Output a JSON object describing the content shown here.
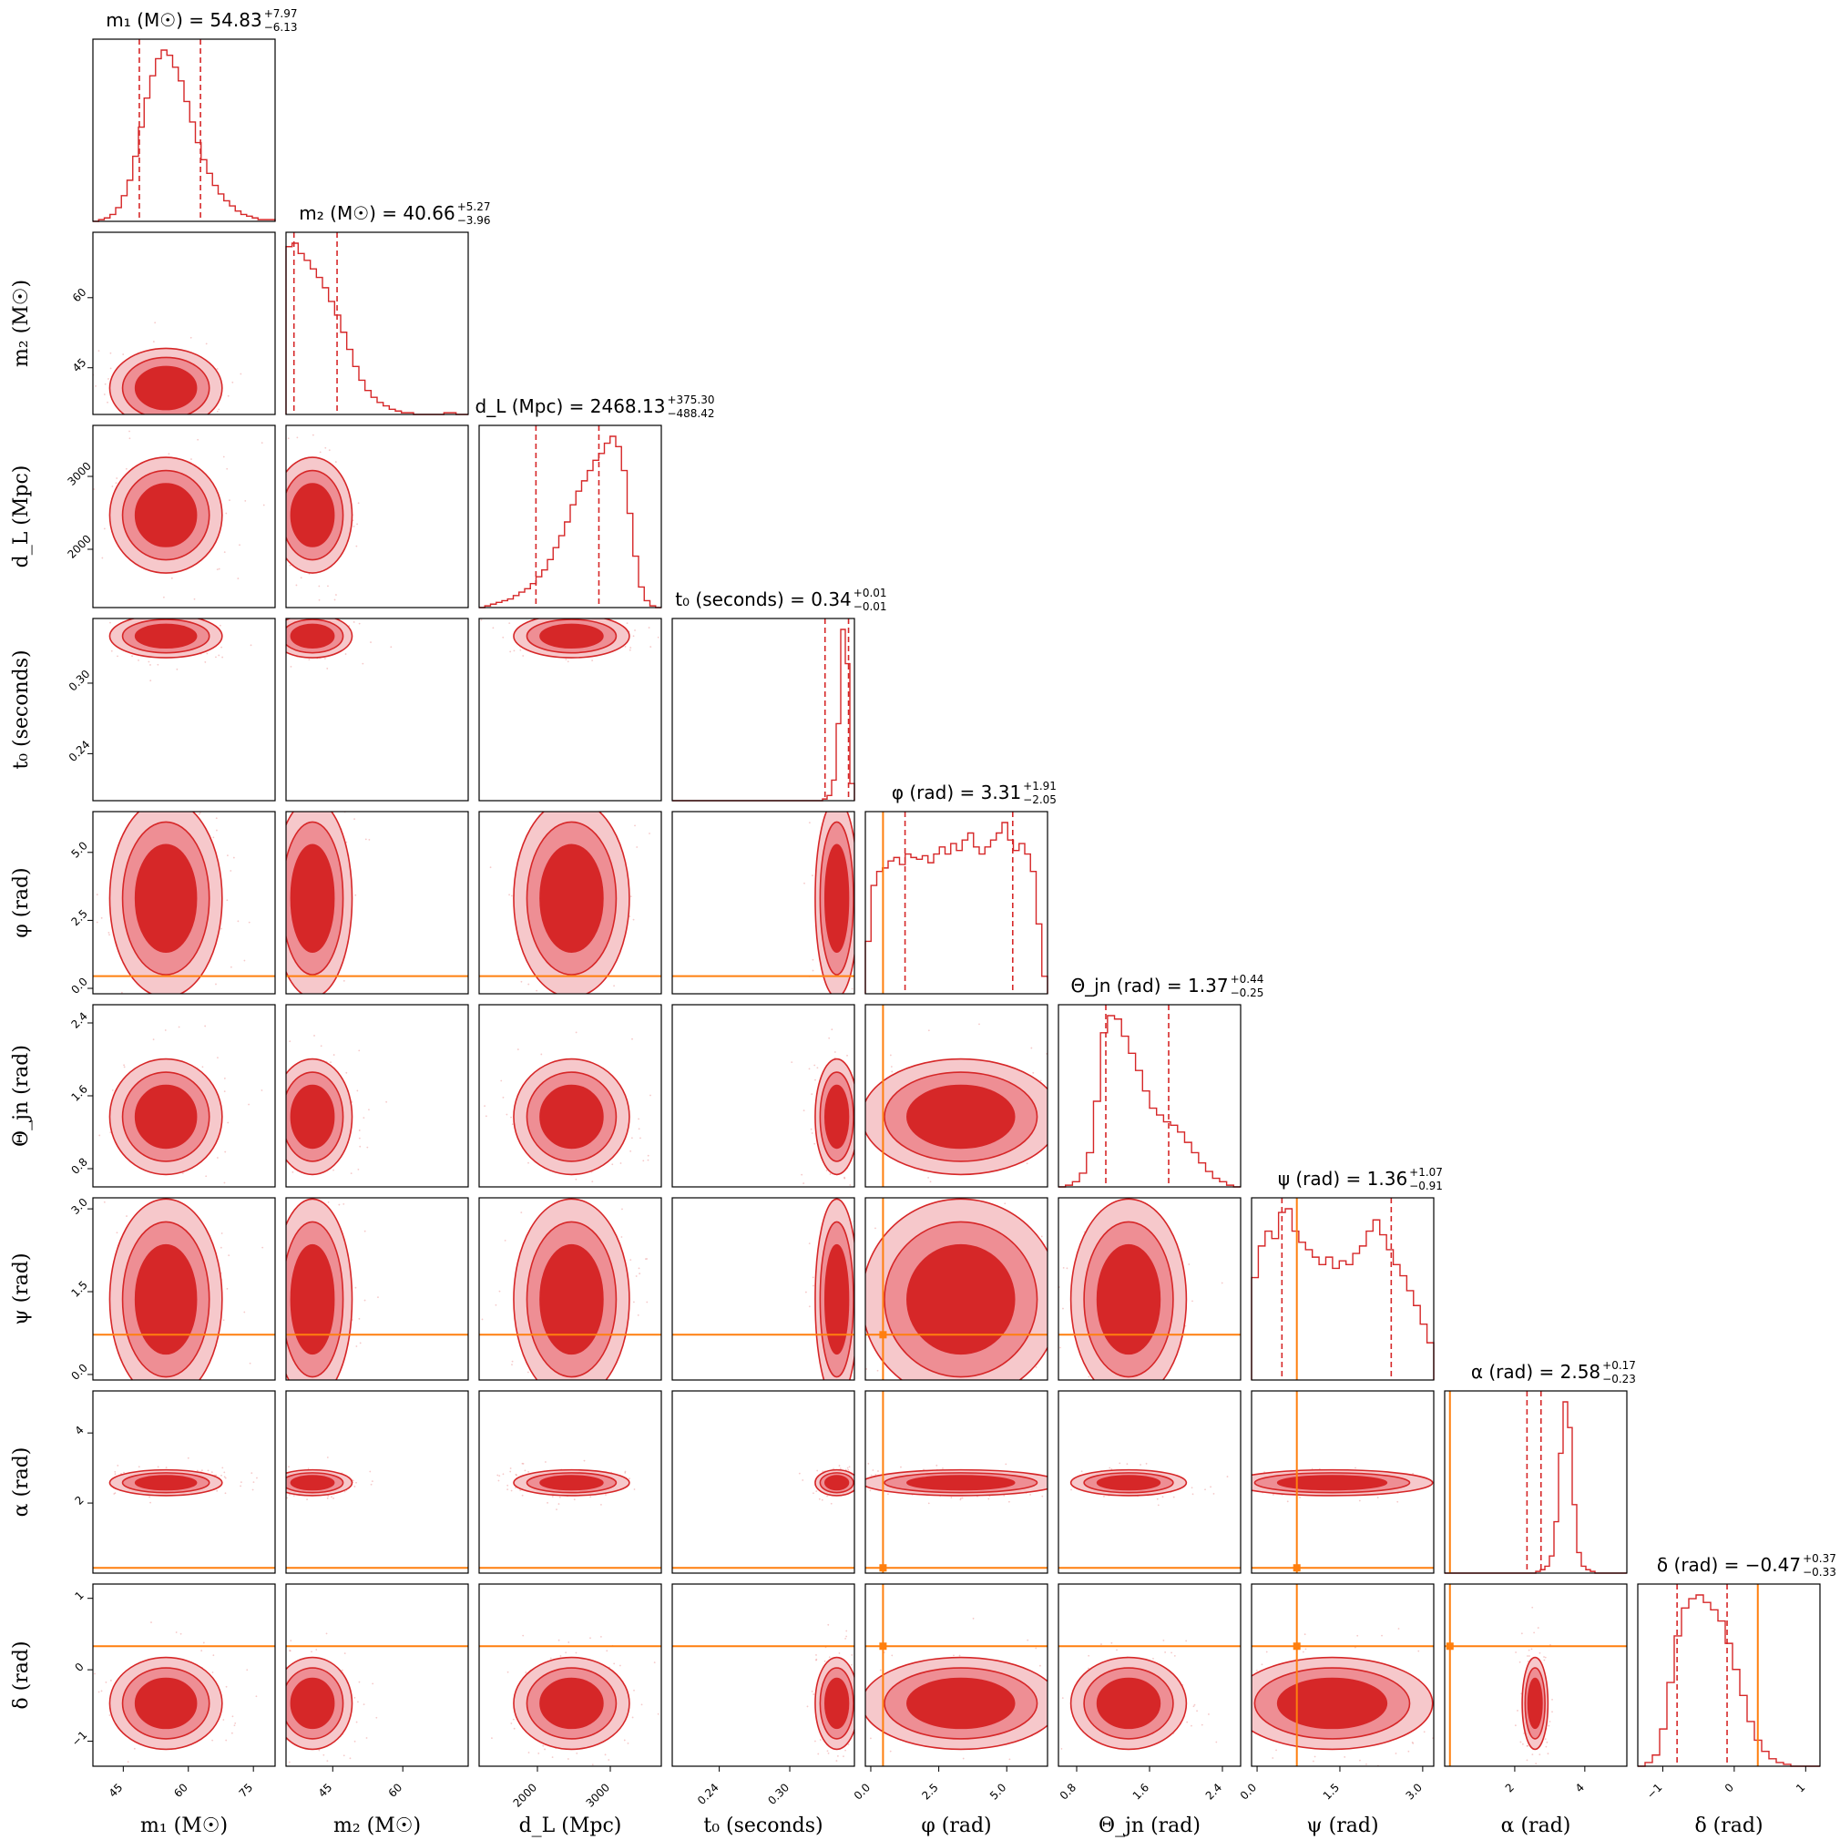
{
  "chart_data": {
    "type": "corner",
    "params": [
      {
        "key": "m1",
        "label": "m₁ (M☉)",
        "range": [
          38,
          80
        ],
        "ticks": [
          45,
          60,
          75
        ],
        "ticklabels": [
          "45",
          "60",
          "75"
        ],
        "title": "m₁ (M☉) = 54.83",
        "median": 54.83,
        "err_plus": "+7.97",
        "err_minus": "−6.13",
        "q_low": 48.7,
        "q_high": 62.8,
        "truth": null,
        "hist": [
          0,
          1,
          2,
          4,
          8,
          15,
          24,
          38,
          55,
          72,
          85,
          95,
          100,
          97,
          90,
          82,
          70,
          58,
          46,
          36,
          28,
          21,
          16,
          12,
          9,
          6,
          4,
          3,
          2,
          1,
          1,
          1
        ]
      },
      {
        "key": "m2",
        "label": "m₂ (M☉)",
        "range": [
          35,
          74
        ],
        "ticks": [
          45,
          60
        ],
        "ticklabels": [
          "45",
          "60"
        ],
        "title": "m₂ (M☉) = 40.66",
        "median": 40.66,
        "err_plus": "+5.27",
        "err_minus": "−3.96",
        "q_low": 36.7,
        "q_high": 45.93,
        "truth": null,
        "hist": [
          98,
          100,
          94,
          90,
          85,
          80,
          74,
          66,
          58,
          48,
          38,
          28,
          20,
          14,
          10,
          7,
          5,
          3,
          2,
          1,
          1,
          0,
          0,
          0,
          0,
          0,
          1,
          1,
          0,
          0
        ]
      },
      {
        "key": "dL",
        "label": "d_L (Mpc)",
        "range": [
          1200,
          3700
        ],
        "ticks": [
          2000,
          3000
        ],
        "ticklabels": [
          "2000",
          "3000"
        ],
        "title": "d_L (Mpc) = 2468.13",
        "median": 2468.13,
        "err_plus": "+375.30",
        "err_minus": "−488.42",
        "q_low": 1979.71,
        "q_high": 2843.43,
        "truth": null,
        "hist": [
          0,
          1,
          2,
          3,
          4,
          5,
          7,
          9,
          11,
          14,
          18,
          22,
          28,
          35,
          42,
          50,
          60,
          68,
          74,
          80,
          86,
          90,
          96,
          100,
          94,
          80,
          55,
          30,
          12,
          4,
          1,
          0
        ]
      },
      {
        "key": "t0",
        "label": "t₀ (seconds)",
        "range": [
          0.2,
          0.355
        ],
        "ticks": [
          0.24,
          0.3
        ],
        "ticklabels": [
          "0.24",
          "0.30"
        ],
        "title": "t₀ (seconds) = 0.34",
        "median": 0.34,
        "err_plus": "+0.01",
        "err_minus": "−0.01",
        "q_low": 0.33,
        "q_high": 0.35,
        "truth": null,
        "hist": [
          0,
          0,
          0,
          0,
          0,
          0,
          0,
          0,
          0,
          0,
          0,
          0,
          0,
          0,
          0,
          0,
          0,
          0,
          0,
          0,
          0,
          0,
          0,
          0,
          0,
          0,
          0,
          0,
          0,
          0,
          0,
          0,
          0,
          1,
          3,
          12,
          45,
          100,
          80,
          10
        ]
      },
      {
        "key": "phi",
        "label": "φ (rad)",
        "range": [
          -0.2,
          6.5
        ],
        "ticks": [
          0.0,
          2.5,
          5.0
        ],
        "ticklabels": [
          "0.0",
          "2.5",
          "5.0"
        ],
        "title": "φ (rad) = 3.31",
        "median": 3.31,
        "err_plus": "+1.91",
        "err_minus": "−2.05",
        "q_low": 1.26,
        "q_high": 5.22,
        "truth": 0.45,
        "hist": [
          30,
          62,
          70,
          72,
          76,
          78,
          74,
          80,
          78,
          77,
          79,
          75,
          80,
          84,
          80,
          86,
          82,
          88,
          92,
          84,
          80,
          84,
          88,
          92,
          98,
          88,
          82,
          86,
          80,
          70,
          40,
          10
        ]
      },
      {
        "key": "theta",
        "label": "Θ_jn (rad)",
        "range": [
          0.6,
          2.6
        ],
        "ticks": [
          0.8,
          1.6,
          2.4
        ],
        "ticklabels": [
          "0.8",
          "1.6",
          "2.4"
        ],
        "title": "Θ_jn (rad) = 1.37",
        "median": 1.37,
        "err_plus": "+0.44",
        "err_minus": "−0.25",
        "q_low": 1.12,
        "q_high": 1.81,
        "truth": null,
        "hist": [
          0,
          1,
          3,
          8,
          20,
          50,
          90,
          100,
          98,
          88,
          78,
          68,
          56,
          46,
          42,
          38,
          36,
          32,
          26,
          20,
          14,
          9,
          5,
          3,
          1,
          0
        ]
      },
      {
        "key": "psi",
        "label": "ψ (rad)",
        "range": [
          -0.1,
          3.2
        ],
        "ticks": [
          0.0,
          1.5,
          3.0
        ],
        "ticklabels": [
          "0.0",
          "1.5",
          "3.0"
        ],
        "title": "ψ (rad) = 1.36",
        "median": 1.36,
        "err_plus": "+1.07",
        "err_minus": "−0.91",
        "q_low": 0.45,
        "q_high": 2.43,
        "truth": 0.72,
        "hist": [
          55,
          72,
          80,
          76,
          90,
          92,
          80,
          74,
          70,
          66,
          62,
          66,
          60,
          64,
          62,
          68,
          72,
          80,
          86,
          78,
          70,
          62,
          56,
          48,
          40,
          30,
          20
        ]
      },
      {
        "key": "alpha",
        "label": "α (rad)",
        "range": [
          0.0,
          5.2
        ],
        "ticks": [
          2,
          4
        ],
        "ticklabels": [
          "2",
          "4"
        ],
        "title": "α (rad) = 2.58",
        "median": 2.58,
        "err_plus": "+0.17",
        "err_minus": "−0.23",
        "q_low": 2.35,
        "q_high": 2.75,
        "truth": 0.15,
        "hist": [
          0,
          0,
          0,
          0,
          0,
          0,
          0,
          0,
          0,
          0,
          0,
          0,
          0,
          0,
          0,
          0,
          0,
          0,
          0,
          0,
          1,
          2,
          4,
          10,
          30,
          70,
          100,
          85,
          40,
          12,
          4,
          2,
          1,
          0,
          0,
          0,
          0,
          0,
          0,
          0
        ]
      },
      {
        "key": "delta",
        "label": "δ (rad)",
        "range": [
          -1.35,
          1.2
        ],
        "ticks": [
          -1,
          0,
          1
        ],
        "ticklabels": [
          "−1",
          "0",
          "1"
        ],
        "title": "δ (rad) = −0.47",
        "median": -0.47,
        "err_plus": "+0.37",
        "err_minus": "−0.33",
        "q_low": -0.8,
        "q_high": -0.1,
        "truth": 0.33,
        "hist": [
          0,
          2,
          6,
          20,
          45,
          70,
          85,
          90,
          92,
          88,
          84,
          78,
          66,
          52,
          38,
          24,
          14,
          8,
          4,
          2,
          1,
          0,
          0,
          0,
          0
        ]
      }
    ],
    "colors": {
      "posterior": "#d62728",
      "inner_fill": "#d62728",
      "outer_fill": "#ee8e94",
      "truth": "#ff7f0e"
    }
  }
}
